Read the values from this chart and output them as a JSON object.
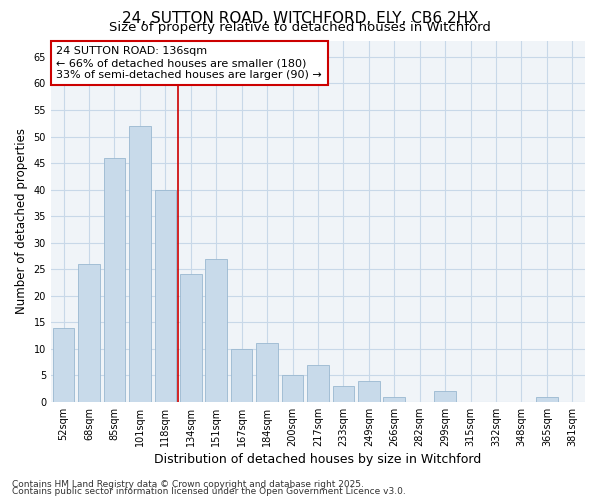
{
  "title1": "24, SUTTON ROAD, WITCHFORD, ELY, CB6 2HX",
  "title2": "Size of property relative to detached houses in Witchford",
  "xlabel": "Distribution of detached houses by size in Witchford",
  "ylabel": "Number of detached properties",
  "categories": [
    "52sqm",
    "68sqm",
    "85sqm",
    "101sqm",
    "118sqm",
    "134sqm",
    "151sqm",
    "167sqm",
    "184sqm",
    "200sqm",
    "217sqm",
    "233sqm",
    "249sqm",
    "266sqm",
    "282sqm",
    "299sqm",
    "315sqm",
    "332sqm",
    "348sqm",
    "365sqm",
    "381sqm"
  ],
  "values": [
    14,
    26,
    46,
    52,
    40,
    24,
    27,
    10,
    11,
    5,
    7,
    3,
    4,
    1,
    0,
    2,
    0,
    0,
    0,
    1,
    0
  ],
  "bar_color": "#c8daea",
  "bar_edge_color": "#9ab8d0",
  "vline_color": "#cc0000",
  "vline_x": 4.5,
  "annotation_title": "24 SUTTON ROAD: 136sqm",
  "annotation_line1": "← 66% of detached houses are smaller (180)",
  "annotation_line2": "33% of semi-detached houses are larger (90) →",
  "annotation_box_facecolor": "#ffffff",
  "annotation_box_edgecolor": "#cc0000",
  "ylim": [
    0,
    68
  ],
  "yticks": [
    0,
    5,
    10,
    15,
    20,
    25,
    30,
    35,
    40,
    45,
    50,
    55,
    60,
    65
  ],
  "grid_color": "#c8d8e8",
  "background_color": "#ffffff",
  "plot_bg_color": "#f0f4f8",
  "footer1": "Contains HM Land Registry data © Crown copyright and database right 2025.",
  "footer2": "Contains public sector information licensed under the Open Government Licence v3.0.",
  "title_fontsize": 11,
  "subtitle_fontsize": 9.5,
  "xlabel_fontsize": 9,
  "ylabel_fontsize": 8.5,
  "tick_fontsize": 7,
  "annot_fontsize": 8,
  "footer_fontsize": 6.5
}
